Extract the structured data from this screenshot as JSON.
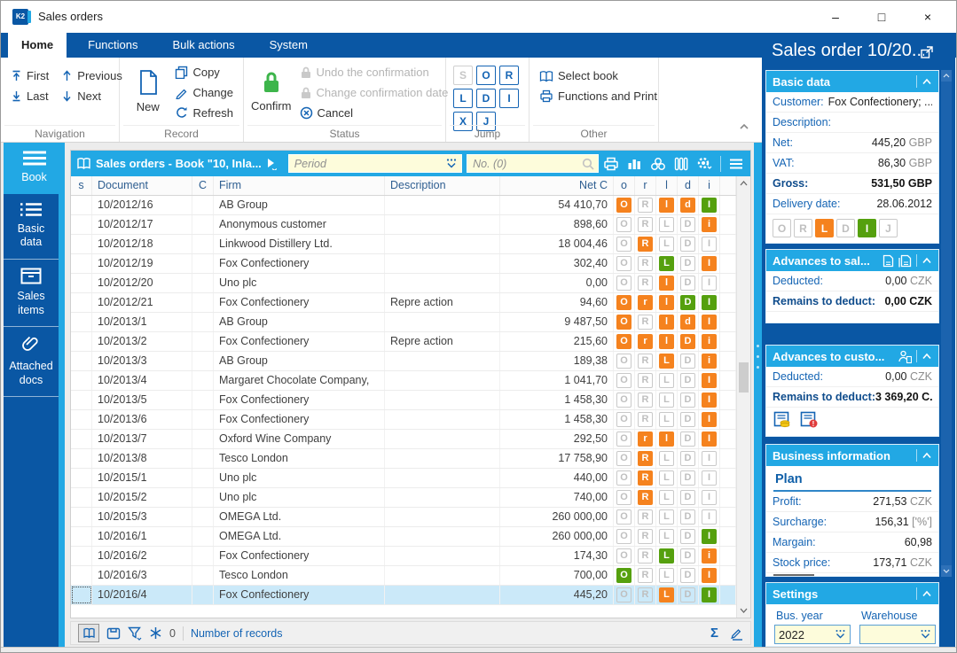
{
  "window": {
    "title": "Sales orders",
    "controls": {
      "minimize": "–",
      "maximize": "□",
      "close": "×"
    }
  },
  "tabs": [
    {
      "label": "Home",
      "active": true
    },
    {
      "label": "Functions"
    },
    {
      "label": "Bulk actions"
    },
    {
      "label": "System"
    }
  ],
  "ribbon": {
    "navigation": {
      "label": "Navigation",
      "first": "First",
      "previous": "Previous",
      "last": "Last",
      "next": "Next"
    },
    "record": {
      "label": "Record",
      "new": "New",
      "copy": "Copy",
      "change": "Change",
      "refresh": "Refresh"
    },
    "status": {
      "label": "Status",
      "confirm": "Confirm",
      "undo": "Undo the confirmation",
      "change_date": "Change confirmation date",
      "cancel": "Cancel"
    },
    "jump": {
      "label": "Jump",
      "buttons": [
        {
          "letter": "S",
          "disabled": true
        },
        {
          "letter": "O"
        },
        {
          "letter": "R"
        },
        {
          "letter": "L"
        },
        {
          "letter": "D"
        },
        {
          "letter": "I"
        },
        {
          "letter": "X"
        },
        {
          "letter": "J"
        }
      ]
    },
    "other": {
      "label": "Other",
      "select_book": "Select book",
      "functions_print": "Functions and Print"
    }
  },
  "sidebar": {
    "items": [
      {
        "label": "Book",
        "icon": "menu-icon",
        "active": true
      },
      {
        "label": "Basic data",
        "icon": "list-icon"
      },
      {
        "label": "Sales items",
        "icon": "box-icon"
      },
      {
        "label": "Attached docs",
        "icon": "paperclip-icon"
      }
    ]
  },
  "table": {
    "toolbar": {
      "title": "Sales orders - Book \"10, Inla...",
      "period_placeholder": "Period",
      "search_placeholder": "No. (0)",
      "icons": [
        "book-icon",
        "play-icon",
        "printer-icon",
        "chart-icon",
        "relations-icon",
        "columns-icon",
        "settings-icon",
        "menu-icon"
      ]
    },
    "columns": [
      "s",
      "Document",
      "C",
      "Firm",
      "Description",
      "Net C",
      "o",
      "r",
      "l",
      "d",
      "i"
    ],
    "rows": [
      {
        "document": "10/2012/16",
        "firm": "AB Group",
        "description": "",
        "net": "54 410,70",
        "badges": [
          [
            "O",
            "orange"
          ],
          [
            "R",
            "off"
          ],
          [
            "l",
            "orange"
          ],
          [
            "d",
            "orange"
          ],
          [
            "I",
            "green"
          ]
        ]
      },
      {
        "document": "10/2012/17",
        "firm": "Anonymous customer",
        "description": "",
        "net": "898,60",
        "badges": [
          [
            "O",
            "off"
          ],
          [
            "R",
            "off"
          ],
          [
            "L",
            "off"
          ],
          [
            "D",
            "off"
          ],
          [
            "i",
            "orange"
          ]
        ]
      },
      {
        "document": "10/2012/18",
        "firm": "Linkwood Distillery Ltd.",
        "description": "",
        "net": "18 004,46",
        "badges": [
          [
            "O",
            "off"
          ],
          [
            "R",
            "orange"
          ],
          [
            "L",
            "off"
          ],
          [
            "D",
            "off"
          ],
          [
            "I",
            "off"
          ]
        ]
      },
      {
        "document": "10/2012/19",
        "firm": "Fox Confectionery",
        "description": "",
        "net": "302,40",
        "badges": [
          [
            "O",
            "off"
          ],
          [
            "R",
            "off"
          ],
          [
            "L",
            "green"
          ],
          [
            "D",
            "off"
          ],
          [
            "I",
            "orange"
          ]
        ]
      },
      {
        "document": "10/2012/20",
        "firm": "Uno plc",
        "description": "",
        "net": "0,00",
        "badges": [
          [
            "O",
            "off"
          ],
          [
            "R",
            "off"
          ],
          [
            "l",
            "orange"
          ],
          [
            "D",
            "off"
          ],
          [
            "I",
            "off"
          ]
        ]
      },
      {
        "document": "10/2012/21",
        "firm": "Fox Confectionery",
        "description": "Repre action",
        "net": "94,60",
        "badges": [
          [
            "O",
            "orange"
          ],
          [
            "r",
            "orange"
          ],
          [
            "l",
            "orange"
          ],
          [
            "D",
            "green"
          ],
          [
            "I",
            "green"
          ]
        ]
      },
      {
        "document": "10/2013/1",
        "firm": "AB Group",
        "description": "",
        "net": "9 487,50",
        "badges": [
          [
            "O",
            "orange"
          ],
          [
            "R",
            "off"
          ],
          [
            "l",
            "orange"
          ],
          [
            "d",
            "orange"
          ],
          [
            "I",
            "orange"
          ]
        ]
      },
      {
        "document": "10/2013/2",
        "firm": "Fox Confectionery",
        "description": "Repre action",
        "net": "215,60",
        "badges": [
          [
            "O",
            "orange"
          ],
          [
            "r",
            "orange"
          ],
          [
            "l",
            "orange"
          ],
          [
            "D",
            "orange"
          ],
          [
            "i",
            "orange"
          ]
        ]
      },
      {
        "document": "10/2013/3",
        "firm": "AB Group",
        "description": "",
        "net": "189,38",
        "badges": [
          [
            "O",
            "off"
          ],
          [
            "R",
            "off"
          ],
          [
            "L",
            "orange"
          ],
          [
            "D",
            "off"
          ],
          [
            "i",
            "orange"
          ]
        ]
      },
      {
        "document": "10/2013/4",
        "firm": "Margaret Chocolate Company,",
        "description": "",
        "net": "1 041,70",
        "badges": [
          [
            "O",
            "off"
          ],
          [
            "R",
            "off"
          ],
          [
            "L",
            "off"
          ],
          [
            "D",
            "off"
          ],
          [
            "I",
            "orange"
          ]
        ]
      },
      {
        "document": "10/2013/5",
        "firm": "Fox Confectionery",
        "description": "",
        "net": "1 458,30",
        "badges": [
          [
            "O",
            "off"
          ],
          [
            "R",
            "off"
          ],
          [
            "L",
            "off"
          ],
          [
            "D",
            "off"
          ],
          [
            "I",
            "orange"
          ]
        ]
      },
      {
        "document": "10/2013/6",
        "firm": "Fox Confectionery",
        "description": "",
        "net": "1 458,30",
        "badges": [
          [
            "O",
            "off"
          ],
          [
            "R",
            "off"
          ],
          [
            "L",
            "off"
          ],
          [
            "D",
            "off"
          ],
          [
            "I",
            "orange"
          ]
        ]
      },
      {
        "document": "10/2013/7",
        "firm": "Oxford Wine Company",
        "description": "",
        "net": "292,50",
        "badges": [
          [
            "O",
            "off"
          ],
          [
            "r",
            "orange"
          ],
          [
            "l",
            "orange"
          ],
          [
            "D",
            "off"
          ],
          [
            "I",
            "orange"
          ]
        ]
      },
      {
        "document": "10/2013/8",
        "firm": "Tesco London",
        "description": "",
        "net": "17 758,90",
        "badges": [
          [
            "O",
            "off"
          ],
          [
            "R",
            "orange"
          ],
          [
            "L",
            "off"
          ],
          [
            "D",
            "off"
          ],
          [
            "I",
            "off"
          ]
        ]
      },
      {
        "document": "10/2015/1",
        "firm": "Uno plc",
        "description": "",
        "net": "440,00",
        "badges": [
          [
            "O",
            "off"
          ],
          [
            "R",
            "orange"
          ],
          [
            "L",
            "off"
          ],
          [
            "D",
            "off"
          ],
          [
            "I",
            "off"
          ]
        ]
      },
      {
        "document": "10/2015/2",
        "firm": "Uno plc",
        "description": "",
        "net": "740,00",
        "badges": [
          [
            "O",
            "off"
          ],
          [
            "R",
            "orange"
          ],
          [
            "L",
            "off"
          ],
          [
            "D",
            "off"
          ],
          [
            "I",
            "off"
          ]
        ]
      },
      {
        "document": "10/2015/3",
        "firm": "OMEGA Ltd.",
        "description": "",
        "net": "260 000,00",
        "badges": [
          [
            "O",
            "off"
          ],
          [
            "R",
            "off"
          ],
          [
            "L",
            "off"
          ],
          [
            "D",
            "off"
          ],
          [
            "I",
            "off"
          ]
        ]
      },
      {
        "document": "10/2016/1",
        "firm": "OMEGA Ltd.",
        "description": "",
        "net": "260 000,00",
        "badges": [
          [
            "O",
            "off"
          ],
          [
            "R",
            "off"
          ],
          [
            "L",
            "off"
          ],
          [
            "D",
            "off"
          ],
          [
            "I",
            "green"
          ]
        ]
      },
      {
        "document": "10/2016/2",
        "firm": "Fox Confectionery",
        "description": "",
        "net": "174,30",
        "badges": [
          [
            "O",
            "off"
          ],
          [
            "R",
            "off"
          ],
          [
            "L",
            "green"
          ],
          [
            "D",
            "off"
          ],
          [
            "i",
            "orange"
          ]
        ]
      },
      {
        "document": "10/2016/3",
        "firm": "Tesco London",
        "description": "",
        "net": "700,00",
        "badges": [
          [
            "O",
            "green"
          ],
          [
            "R",
            "off"
          ],
          [
            "L",
            "off"
          ],
          [
            "D",
            "off"
          ],
          [
            "I",
            "orange"
          ]
        ]
      },
      {
        "document": "10/2016/4",
        "firm": "Fox Confectionery",
        "description": "",
        "net": "445,20",
        "badges": [
          [
            "O",
            "off"
          ],
          [
            "R",
            "off"
          ],
          [
            "L",
            "orange"
          ],
          [
            "D",
            "off"
          ],
          [
            "I",
            "green"
          ]
        ],
        "selected": true
      }
    ]
  },
  "statusbar": {
    "frozen_count": "0",
    "records_label": "Number of records",
    "icons": [
      "book-icon",
      "card-icon",
      "filter-icon",
      "freeze-icon",
      "sum-icon",
      "edit-icon"
    ]
  },
  "panel": {
    "title": "Sales order 10/20...",
    "basic": {
      "title": "Basic data",
      "rows": [
        {
          "label": "Customer:",
          "value": "Fox Confectionery; ...",
          "inline": true
        },
        {
          "label": "Description:",
          "value": ""
        },
        {
          "label": "Net:",
          "value": "445,20",
          "unit": "GBP"
        },
        {
          "label": "VAT:",
          "value": "86,30",
          "unit": "GBP"
        },
        {
          "label": "Gross:",
          "value": "531,50",
          "unit": "GBP",
          "bold": true
        },
        {
          "label": "Delivery date:",
          "value": "28.06.2012"
        }
      ],
      "badges": [
        [
          "O",
          "off"
        ],
        [
          "R",
          "off"
        ],
        [
          "L",
          "orange"
        ],
        [
          "D",
          "off"
        ],
        [
          "I",
          "green"
        ],
        [
          "J",
          "off"
        ]
      ]
    },
    "adv_sal": {
      "title": "Advances to sal...",
      "rows": [
        {
          "label": "Deducted:",
          "value": "0,00",
          "unit": "CZK"
        },
        {
          "label": "Remains to deduct:",
          "value": "0,00",
          "unit": "CZK",
          "bold": true
        }
      ]
    },
    "adv_cust": {
      "title": "Advances to custo...",
      "rows": [
        {
          "label": "Deducted:",
          "value": "0,00",
          "unit": "CZK"
        },
        {
          "label": "Remains to deduct:",
          "value": "3 369,20",
          "unit": "C.",
          "bold": true
        }
      ]
    },
    "bizinfo": {
      "title": "Business information",
      "subtitle": "Plan",
      "rows": [
        {
          "label": "Profit:",
          "value": "271,53",
          "unit": "CZK"
        },
        {
          "label": "Surcharge:",
          "value": "156,31",
          "unit": "['%']"
        },
        {
          "label": "Margain:",
          "value": "60,98",
          "unit": ""
        },
        {
          "label": "Stock price:",
          "value": "173,71",
          "unit": "CZK"
        }
      ]
    },
    "settings": {
      "title": "Settings",
      "busyear_label": "Bus. year",
      "busyear_value": "2022",
      "warehouse_label": "Warehouse",
      "warehouse_value": ""
    },
    "colors": {
      "accent_blue": "#0a57a4",
      "cyan": "#22a8e4",
      "orange": "#f5821e",
      "green": "#55a00e",
      "input_yellow": "#fdfcdb"
    }
  }
}
